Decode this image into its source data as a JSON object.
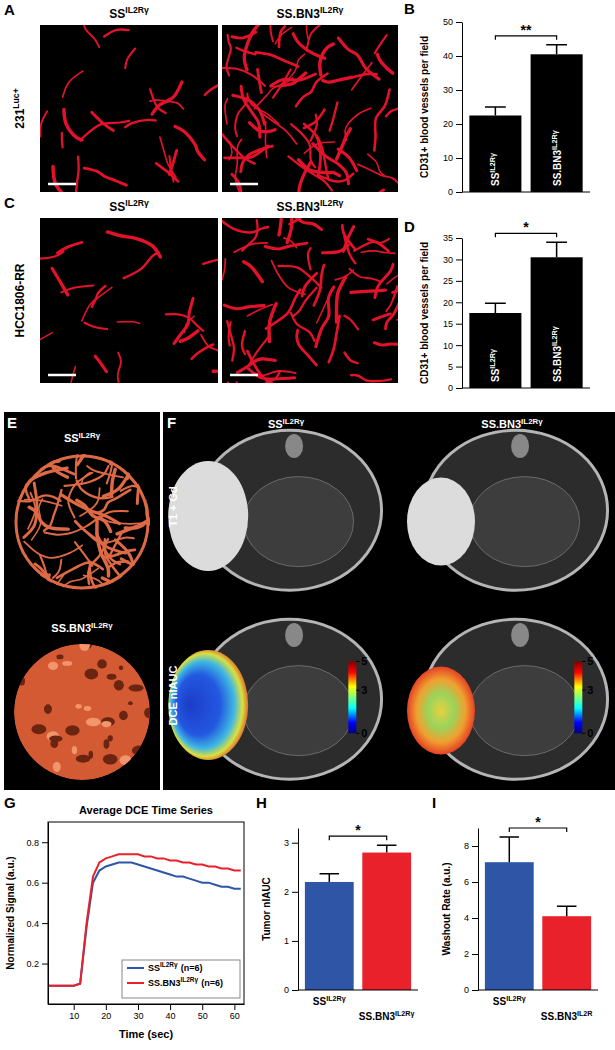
{
  "figure": {
    "A": {
      "panel": "A",
      "row_label": {
        "text": "231",
        "sup": "Luc+"
      },
      "columns": [
        {
          "text": "SS",
          "sup": "IL2Rγ"
        },
        {
          "text": "SS.BN3",
          "sup": "IL2Rγ"
        }
      ]
    },
    "C": {
      "panel": "C",
      "row_label": {
        "text": "HCC1806-RR"
      },
      "columns": [
        {
          "text": "SS",
          "sup": "IL2Rγ"
        },
        {
          "text": "SS.BN3",
          "sup": "IL2Rγ"
        }
      ]
    },
    "E": {
      "panel": "E",
      "labels": [
        {
          "text": "SS",
          "sup": "IL2Rγ"
        },
        {
          "text": "SS.BN3",
          "sup": "IL2Rγ"
        }
      ]
    },
    "F": {
      "panel": "F",
      "columns": [
        {
          "text": "SS",
          "sup": "IL2Rγ"
        },
        {
          "text": "SS.BN3",
          "sup": "IL2Rγ"
        }
      ],
      "rows": [
        "T1 + Gd",
        "DCE nIAUC"
      ],
      "colorbar_lim": [
        0,
        5
      ],
      "colorbar_ticks": [
        0,
        3,
        5
      ]
    }
  },
  "chart_data": [
    {
      "panel": "B",
      "type": "bar",
      "y_label": "CD31+ blood vessels per field",
      "categories": [
        {
          "text": "SS",
          "sup": "IL2Rγ"
        },
        {
          "text": "SS.BN3",
          "sup": "IL2Rγ"
        }
      ],
      "values": [
        22.5,
        40.5
      ],
      "errors": [
        2.5,
        2.8
      ],
      "color": "#000000",
      "ylim": [
        0,
        50
      ],
      "yticks": [
        0,
        10,
        20,
        30,
        40,
        50
      ],
      "significance": "**"
    },
    {
      "panel": "D",
      "type": "bar",
      "y_label": "CD31+ blood vessels per field",
      "categories": [
        {
          "text": "SS",
          "sup": "IL2Rγ"
        },
        {
          "text": "SS.BN3",
          "sup": "IL2Rγ"
        }
      ],
      "values": [
        17.5,
        30.5
      ],
      "errors": [
        2.3,
        3.5
      ],
      "color": "#000000",
      "ylim": [
        0,
        35
      ],
      "yticks": [
        0,
        5,
        10,
        15,
        20,
        25,
        30,
        35
      ],
      "significance": "*"
    },
    {
      "panel": "G",
      "type": "line",
      "title": "Average DCE Time Series",
      "x_label": "Time (sec)",
      "y_label": "Normalized Signal (a.u.)",
      "x": [
        2,
        4,
        6,
        8,
        10,
        12,
        14,
        16,
        18,
        20,
        22,
        24,
        26,
        28,
        30,
        32,
        34,
        36,
        38,
        40,
        42,
        44,
        46,
        48,
        50,
        52,
        54,
        56,
        58,
        60,
        62
      ],
      "series": [
        {
          "name": {
            "text": "SS",
            "sup": "IL2Rγ",
            "after": "(n=6)"
          },
          "color": "#2e55a6",
          "values": [
            0.09,
            0.09,
            0.09,
            0.09,
            0.09,
            0.1,
            0.38,
            0.6,
            0.66,
            0.68,
            0.69,
            0.7,
            0.7,
            0.7,
            0.69,
            0.68,
            0.67,
            0.66,
            0.65,
            0.64,
            0.63,
            0.63,
            0.62,
            0.61,
            0.6,
            0.6,
            0.59,
            0.58,
            0.58,
            0.57,
            0.57
          ]
        },
        {
          "name": {
            "text": "SS.BN3",
            "sup": "IL2Rγ",
            "after": "(n=6)"
          },
          "color": "#e8212b",
          "values": [
            0.09,
            0.09,
            0.09,
            0.09,
            0.09,
            0.1,
            0.4,
            0.63,
            0.7,
            0.72,
            0.73,
            0.74,
            0.74,
            0.74,
            0.74,
            0.73,
            0.73,
            0.72,
            0.72,
            0.71,
            0.71,
            0.7,
            0.7,
            0.69,
            0.69,
            0.68,
            0.68,
            0.67,
            0.67,
            0.66,
            0.66
          ]
        }
      ],
      "xlim": [
        2,
        63
      ],
      "ylim": [
        0,
        0.9
      ],
      "xticks": [
        10,
        20,
        30,
        40,
        50,
        60
      ],
      "yticks": [
        0.2,
        0.4,
        0.6,
        0.8
      ],
      "legend": "lower right"
    },
    {
      "panel": "H",
      "type": "bar",
      "y_label": "Tumor nIAUC",
      "categories": [
        {
          "text": "SS",
          "sup": "IL2Rγ"
        },
        {
          "text": "SS.BN3",
          "sup": "IL2Rγ"
        }
      ],
      "values": [
        2.2,
        2.8
      ],
      "errors": [
        0.17,
        0.15
      ],
      "colors": [
        "#2e55a6",
        "#e8212b"
      ],
      "ylim": [
        0,
        3.3
      ],
      "yticks": [
        0,
        1,
        2,
        3
      ],
      "significance": "*"
    },
    {
      "panel": "I",
      "type": "bar",
      "y_label": "Washout Rate (a.u.)",
      "categories": [
        {
          "text": "SS",
          "sup": "IL2Rγ"
        },
        {
          "text": "SS.BN3",
          "sup": "IL2R"
        }
      ],
      "values": [
        7.1,
        4.1
      ],
      "errors": [
        1.4,
        0.55
      ],
      "colors": [
        "#2e55a6",
        "#e8212b"
      ],
      "ylim": [
        0,
        9
      ],
      "yticks": [
        0,
        2,
        4,
        6,
        8
      ],
      "significance": "*"
    }
  ]
}
